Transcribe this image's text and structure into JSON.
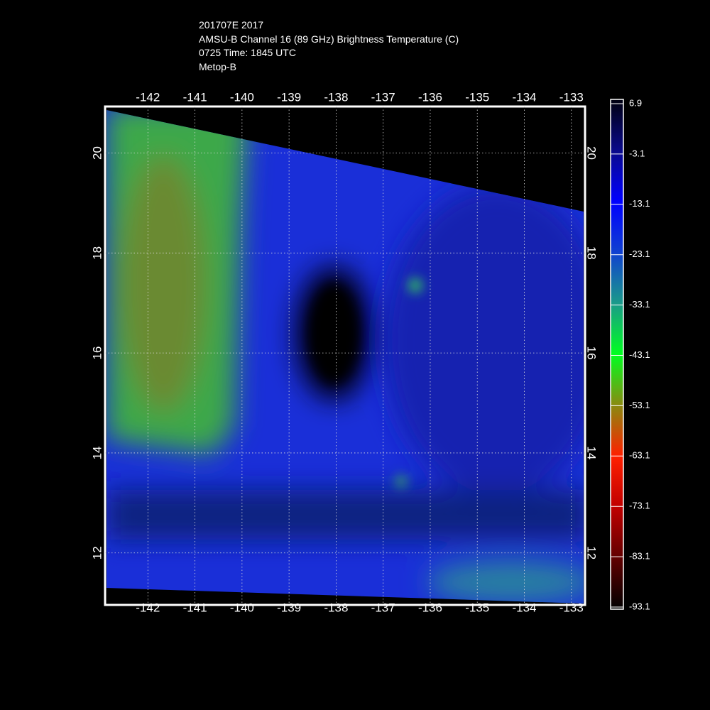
{
  "header": {
    "lines": [
      "201707E 2017",
      "AMSU-B Channel 16 (89 GHz) Brightness Temperature (C)",
      "0725 Time: 1845 UTC",
      "Metop-B"
    ]
  },
  "map": {
    "xlim": [
      -142.91,
      -132.71
    ],
    "xticks": [
      -142,
      -141,
      -140,
      -139,
      -138,
      -137,
      -136,
      -135,
      -134,
      -133
    ],
    "ylim": [
      10.96,
      20.93
    ],
    "yticks": [
      12,
      14,
      16,
      18,
      20
    ]
  },
  "colorbar": {
    "lim": [
      -93.1,
      6.9
    ],
    "ticks": [
      6.9,
      -3.1,
      -13.1,
      -23.1,
      -33.1,
      -43.1,
      -53.1,
      -63.1,
      -73.1,
      -83.1,
      -93.1
    ]
  }
}
